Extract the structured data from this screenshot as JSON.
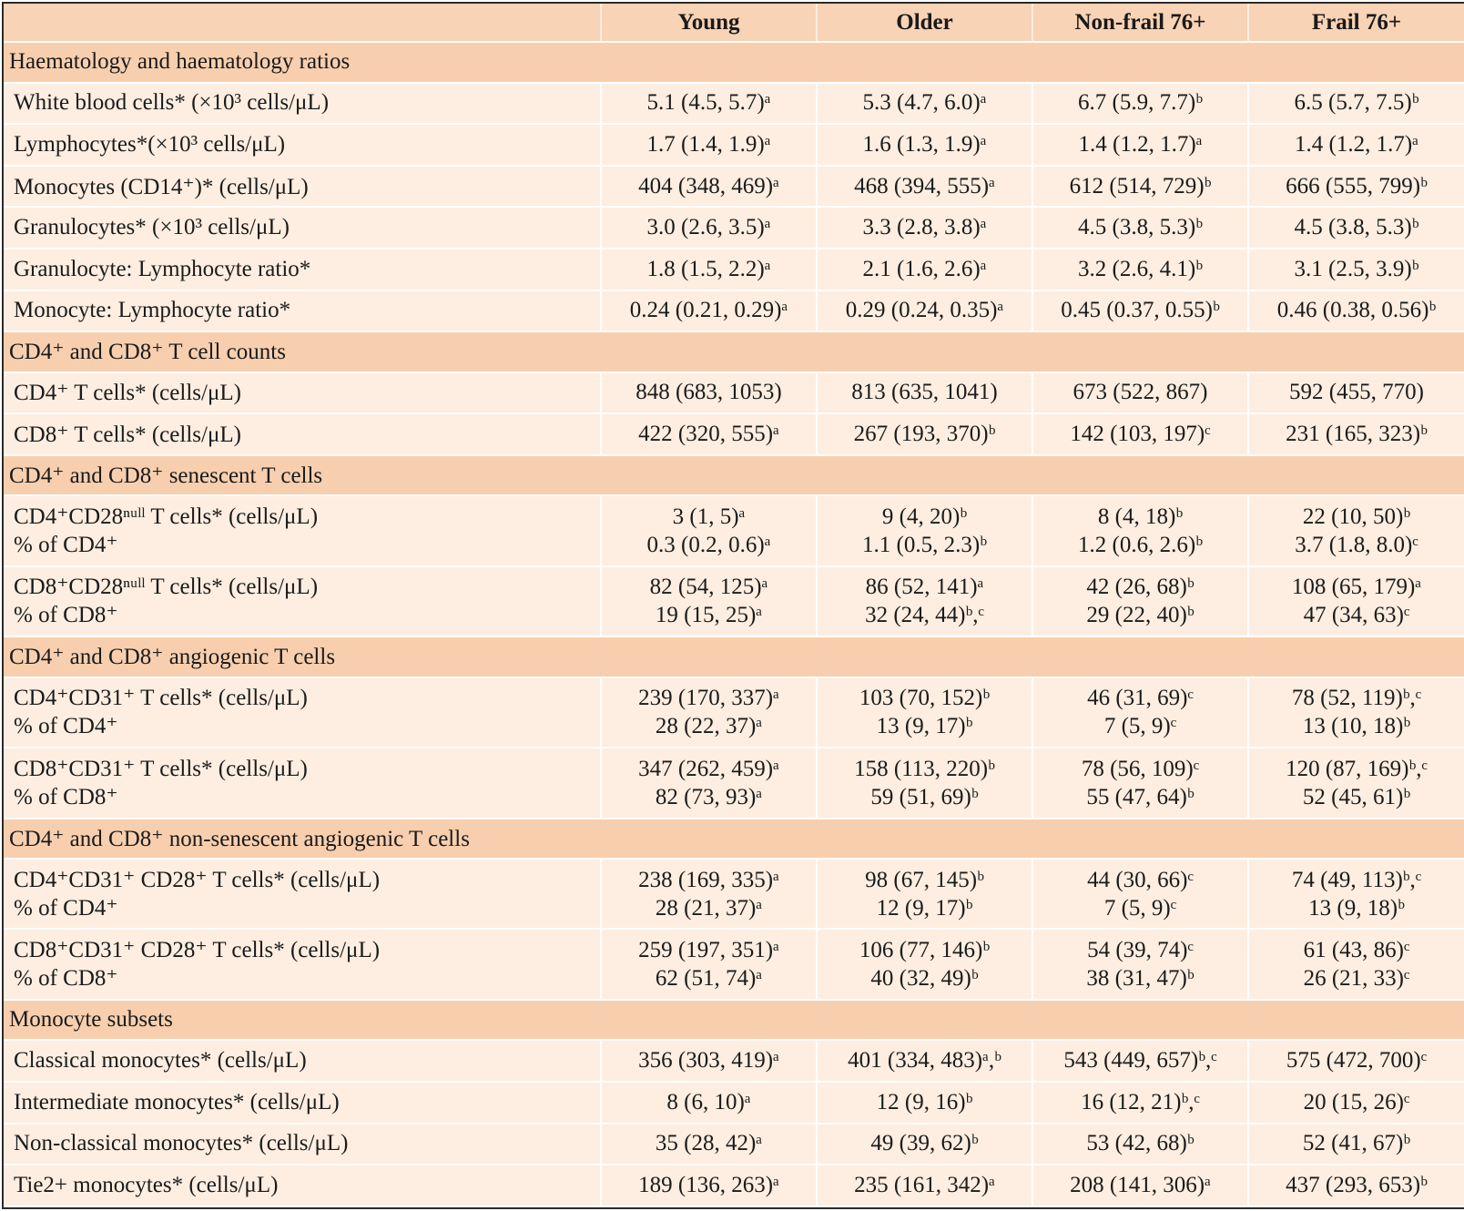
{
  "header": {
    "col0": "",
    "col1": "Young",
    "col2": "Older",
    "col3": "Non-frail 76+",
    "col4": "Frail 76+"
  },
  "sections": [
    {
      "title": "Haematology and haematology ratios",
      "rows": [
        {
          "label": [
            "White blood cells* (×10³ cells/μL)"
          ],
          "values": [
            [
              "5.1 (4.5, 5.7)ᵃ"
            ],
            [
              "5.3 (4.7, 6.0)ᵃ"
            ],
            [
              "6.7 (5.9, 7.7)ᵇ"
            ],
            [
              "6.5 (5.7, 7.5)ᵇ"
            ]
          ]
        },
        {
          "label": [
            "Lymphocytes*(×10³ cells/μL)"
          ],
          "values": [
            [
              "1.7 (1.4, 1.9)ᵃ"
            ],
            [
              "1.6 (1.3, 1.9)ᵃ"
            ],
            [
              "1.4 (1.2, 1.7)ᵃ"
            ],
            [
              "1.4 (1.2, 1.7)ᵃ"
            ]
          ]
        },
        {
          "label": [
            "Monocytes (CD14⁺)* (cells/μL)"
          ],
          "values": [
            [
              "404 (348, 469)ᵃ"
            ],
            [
              "468 (394, 555)ᵃ"
            ],
            [
              "612 (514, 729)ᵇ"
            ],
            [
              "666 (555, 799)ᵇ"
            ]
          ]
        },
        {
          "label": [
            "Granulocytes* (×10³ cells/μL)"
          ],
          "values": [
            [
              "3.0 (2.6, 3.5)ᵃ"
            ],
            [
              "3.3 (2.8, 3.8)ᵃ"
            ],
            [
              "4.5 (3.8, 5.3)ᵇ"
            ],
            [
              "4.5 (3.8, 5.3)ᵇ"
            ]
          ]
        },
        {
          "label": [
            "Granulocyte: Lymphocyte ratio*"
          ],
          "values": [
            [
              "1.8 (1.5, 2.2)ᵃ"
            ],
            [
              "2.1 (1.6, 2.6)ᵃ"
            ],
            [
              "3.2 (2.6, 4.1)ᵇ"
            ],
            [
              "3.1 (2.5, 3.9)ᵇ"
            ]
          ]
        },
        {
          "label": [
            "Monocyte: Lymphocyte ratio*"
          ],
          "values": [
            [
              "0.24 (0.21, 0.29)ᵃ"
            ],
            [
              "0.29 (0.24, 0.35)ᵃ"
            ],
            [
              "0.45 (0.37, 0.55)ᵇ"
            ],
            [
              "0.46 (0.38, 0.56)ᵇ"
            ]
          ]
        }
      ]
    },
    {
      "title": "CD4⁺ and CD8⁺ T cell counts",
      "rows": [
        {
          "label": [
            "CD4⁺ T cells* (cells/μL)"
          ],
          "values": [
            [
              "848 (683, 1053)"
            ],
            [
              "813 (635, 1041)"
            ],
            [
              "673 (522, 867)"
            ],
            [
              "592 (455, 770)"
            ]
          ]
        },
        {
          "label": [
            "CD8⁺ T cells* (cells/μL)"
          ],
          "values": [
            [
              "422 (320, 555)ᵃ"
            ],
            [
              "267 (193, 370)ᵇ"
            ],
            [
              "142 (103, 197)ᶜ"
            ],
            [
              "231 (165, 323)ᵇ"
            ]
          ]
        }
      ]
    },
    {
      "title": "CD4⁺ and CD8⁺ senescent T cells",
      "rows": [
        {
          "label": [
            "CD4⁺CD28ⁿᵘˡˡ T cells* (cells/μL)",
            "%  of CD4⁺"
          ],
          "values": [
            [
              "3 (1, 5)ᵃ",
              "0.3 (0.2, 0.6)ᵃ"
            ],
            [
              "9 (4, 20)ᵇ",
              "1.1 (0.5, 2.3)ᵇ"
            ],
            [
              "8 (4, 18)ᵇ",
              "1.2 (0.6, 2.6)ᵇ"
            ],
            [
              "22 (10, 50)ᵇ",
              "3.7 (1.8, 8.0)ᶜ"
            ]
          ]
        },
        {
          "label": [
            "CD8⁺CD28ⁿᵘˡˡ T cells* (cells/μL)",
            "% of CD8⁺"
          ],
          "values": [
            [
              "82 (54, 125)ᵃ",
              "19 (15, 25)ᵃ"
            ],
            [
              "86 (52, 141)ᵃ",
              "32 (24, 44)ᵇ,ᶜ"
            ],
            [
              "42 (26, 68)ᵇ",
              "29 (22, 40)ᵇ"
            ],
            [
              "108 (65, 179)ᵃ",
              "47 (34, 63)ᶜ"
            ]
          ]
        }
      ]
    },
    {
      "title": "CD4⁺ and CD8⁺ angiogenic T cells",
      "rows": [
        {
          "label": [
            "CD4⁺CD31⁺ T cells* (cells/μL)",
            "% of CD4⁺"
          ],
          "values": [
            [
              "239 (170, 337)ᵃ",
              "28 (22, 37)ᵃ"
            ],
            [
              "103 (70, 152)ᵇ",
              "13 (9, 17)ᵇ"
            ],
            [
              "46 (31, 69)ᶜ",
              "7 (5, 9)ᶜ"
            ],
            [
              "78 (52, 119)ᵇ,ᶜ",
              "13 (10, 18)ᵇ"
            ]
          ]
        },
        {
          "label": [
            "CD8⁺CD31⁺ T cells* (cells/μL)",
            "% of CD8⁺"
          ],
          "values": [
            [
              "347 (262, 459)ᵃ",
              "82 (73, 93)ᵃ"
            ],
            [
              "158 (113, 220)ᵇ",
              "59 (51, 69)ᵇ"
            ],
            [
              "78 (56, 109)ᶜ",
              "55 (47, 64)ᵇ"
            ],
            [
              "120 (87, 169)ᵇ,ᶜ",
              "52 (45, 61)ᵇ"
            ]
          ]
        }
      ]
    },
    {
      "title": "CD4⁺ and CD8⁺ non-senescent angiogenic T cells",
      "rows": [
        {
          "label": [
            "CD4⁺CD31⁺ CD28⁺ T cells* (cells/μL)",
            "% of CD4⁺"
          ],
          "values": [
            [
              "238 (169, 335)ᵃ",
              "28 (21, 37)ᵃ"
            ],
            [
              "98 (67, 145)ᵇ",
              "12 (9, 17)ᵇ"
            ],
            [
              "44 (30, 66)ᶜ",
              "7 (5, 9)ᶜ"
            ],
            [
              "74 (49, 113)ᵇ,ᶜ",
              "13 (9, 18)ᵇ"
            ]
          ]
        },
        {
          "label": [
            "CD8⁺CD31⁺ CD28⁺ T cells* (cells/μL)",
            "% of CD8⁺"
          ],
          "values": [
            [
              "259 (197, 351)ᵃ",
              "62 (51, 74)ᵃ"
            ],
            [
              "106 (77, 146)ᵇ",
              "40 (32, 49)ᵇ"
            ],
            [
              "54 (39, 74)ᶜ",
              "38 (31, 47)ᵇ"
            ],
            [
              "61 (43, 86)ᶜ",
              "26 (21, 33)ᶜ"
            ]
          ]
        }
      ]
    },
    {
      "title": "Monocyte subsets",
      "rows": [
        {
          "label": [
            "Classical monocytes* (cells/μL)"
          ],
          "values": [
            [
              "356 (303, 419)ᵃ"
            ],
            [
              "401 (334, 483)ᵃ,ᵇ"
            ],
            [
              "543 (449, 657)ᵇ,ᶜ"
            ],
            [
              "575 (472, 700)ᶜ"
            ]
          ]
        },
        {
          "label": [
            "Intermediate monocytes* (cells/μL)"
          ],
          "values": [
            [
              "8 (6, 10)ᵃ"
            ],
            [
              "12 (9, 16)ᵇ"
            ],
            [
              "16 (12, 21)ᵇ,ᶜ"
            ],
            [
              "20 (15, 26)ᶜ"
            ]
          ]
        },
        {
          "label": [
            "Non-classical monocytes* (cells/μL)"
          ],
          "values": [
            [
              "35 (28, 42)ᵃ"
            ],
            [
              "49 (39, 62)ᵇ"
            ],
            [
              "53 (42, 68)ᵇ"
            ],
            [
              "52 (41, 67)ᵇ"
            ]
          ]
        },
        {
          "label": [
            "Tie2+ monocytes* (cells/μL)"
          ],
          "values": [
            [
              "189 (136, 263)ᵃ"
            ],
            [
              "235 (161, 342)ᵃ"
            ],
            [
              "208 (141, 306)ᵃ"
            ],
            [
              "437 (293, 653)ᵇ"
            ]
          ]
        }
      ]
    }
  ],
  "colors": {
    "header_bg": "#f9d3b5",
    "section_bg": "#f8cfae",
    "row_bg": "#fdeee1",
    "border": "#2a2a2a"
  }
}
